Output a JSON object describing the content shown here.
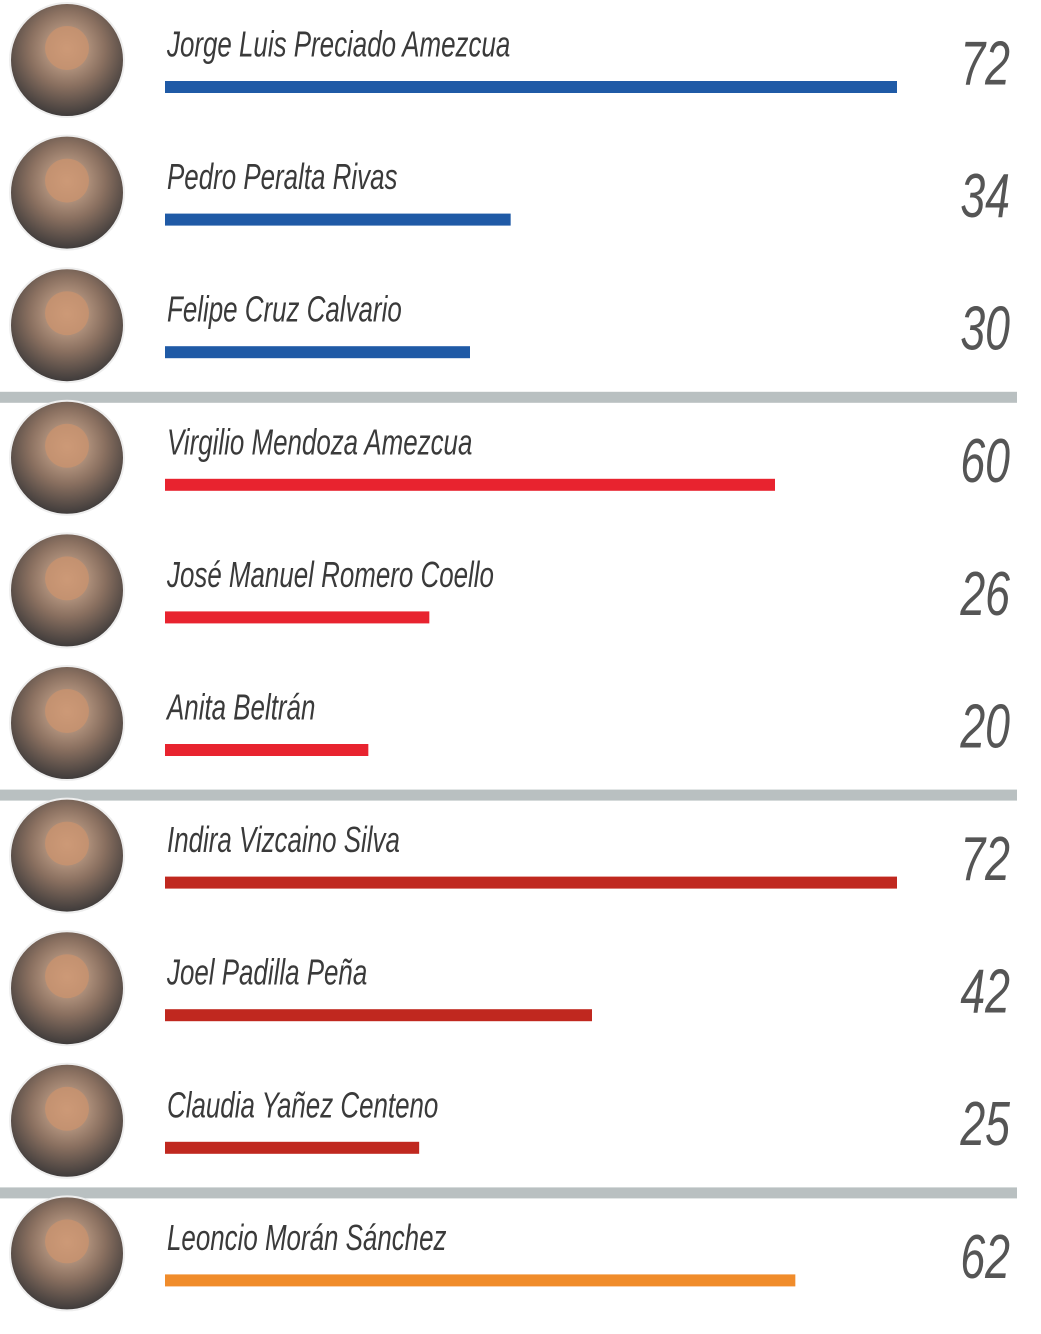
{
  "chart_data": {
    "type": "bar",
    "orientation": "horizontal",
    "categories": [
      "Jorge Luis Preciado Amezcua",
      "Pedro Peralta Rivas",
      "Felipe Cruz Calvario",
      "Virgilio Mendoza Amezcua",
      "José Manuel Romero Coello",
      "Anita Beltrán",
      "Indira Vizcaino Silva",
      "Joel Padilla Peña",
      "Claudia Yañez Centeno",
      "Leoncio Morán Sánchez"
    ],
    "values": [
      72,
      34,
      30,
      60,
      26,
      20,
      72,
      42,
      25,
      62
    ],
    "colors": [
      "#1f5aa6",
      "#1f5aa6",
      "#1f5aa6",
      "#e8232f",
      "#e8232f",
      "#e8232f",
      "#c0281f",
      "#c0281f",
      "#c0281f",
      "#f08c2b"
    ]
  }
}
